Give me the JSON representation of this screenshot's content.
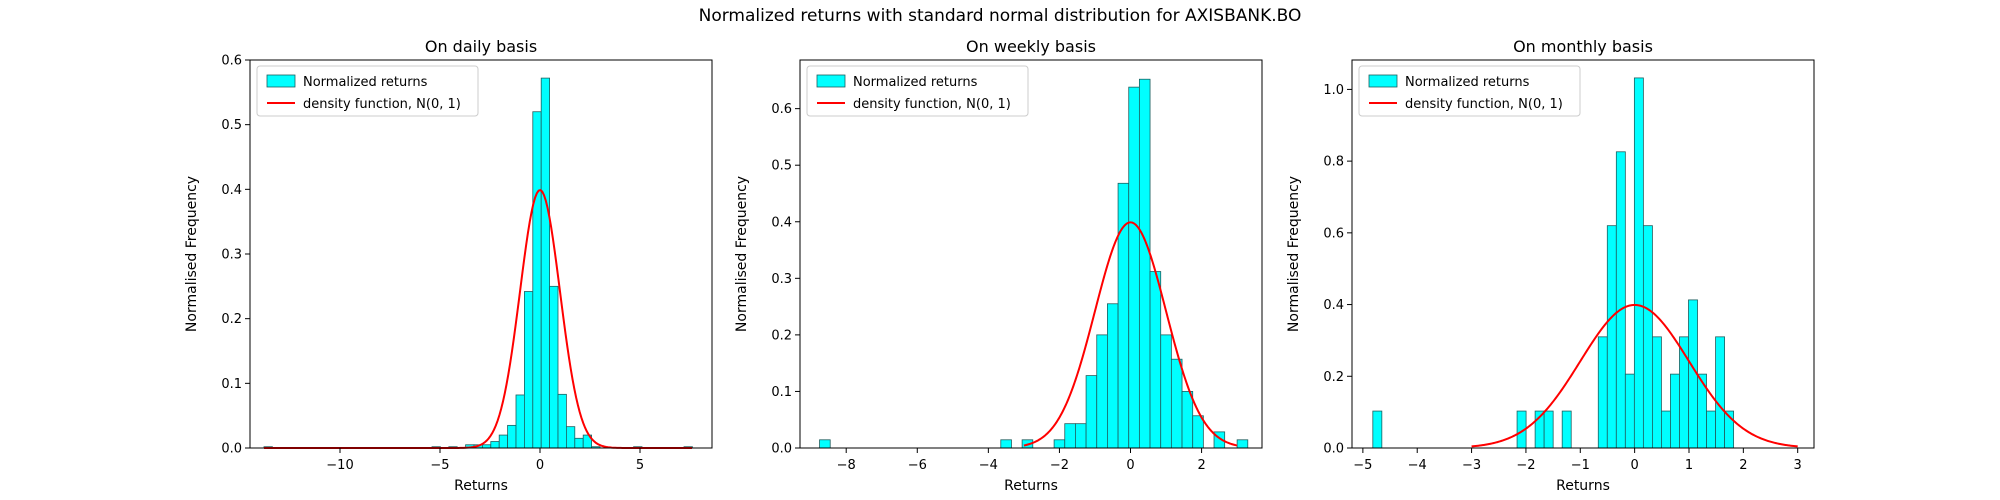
{
  "suptitle": "Normalized returns with standard normal distribution for AXISBANK.BO",
  "colors": {
    "bar_fill": "#00ffff",
    "bar_edge": "#1f5f5f",
    "curve": "#ff0000",
    "axes": "#000000"
  },
  "chart_data": [
    {
      "type": "bar",
      "title": "On daily basis",
      "xlabel": "Returns",
      "ylabel": "Normalised Frequency",
      "xlim": [
        -14.5,
        8.6
      ],
      "ylim": [
        0,
        0.6
      ],
      "xticks": [
        -10,
        -5,
        0,
        5
      ],
      "yticks": [
        0.0,
        0.1,
        0.2,
        0.3,
        0.4,
        0.5,
        0.6
      ],
      "ytick_format": 1,
      "legend": {
        "position": "top-left",
        "entries": [
          "Normalized returns",
          "density function, N(0, 1)"
        ]
      },
      "bin_start": -13.8,
      "bin_width": 0.42,
      "bins": [
        [
          -13.8,
          0.002
        ],
        [
          -5.4,
          0.002
        ],
        [
          -4.56,
          0.002
        ],
        [
          -3.72,
          0.005
        ],
        [
          -3.3,
          0.005
        ],
        [
          -2.88,
          0.005
        ],
        [
          -2.46,
          0.01
        ],
        [
          -2.04,
          0.02
        ],
        [
          -1.62,
          0.035
        ],
        [
          -1.2,
          0.082
        ],
        [
          -0.78,
          0.242
        ],
        [
          -0.36,
          0.52
        ],
        [
          0.06,
          0.572
        ],
        [
          0.48,
          0.25
        ],
        [
          0.9,
          0.083
        ],
        [
          1.32,
          0.033
        ],
        [
          1.74,
          0.015
        ],
        [
          2.16,
          0.02
        ],
        [
          2.58,
          0.002
        ],
        [
          4.68,
          0.002
        ],
        [
          7.2,
          0.002
        ]
      ],
      "curve": {
        "label": "density function, N(0, 1)",
        "x_range": [
          -13.8,
          7.6
        ],
        "mean": 0,
        "std": 1
      }
    },
    {
      "type": "bar",
      "title": "On weekly basis",
      "xlabel": "Returns",
      "ylabel": "Normalised Frequency",
      "xlim": [
        -9.3,
        3.7
      ],
      "ylim": [
        0,
        0.686
      ],
      "xticks": [
        -8,
        -6,
        -4,
        -2,
        0,
        2
      ],
      "yticks": [
        0.0,
        0.1,
        0.2,
        0.3,
        0.4,
        0.5,
        0.6
      ],
      "ytick_format": 1,
      "legend": {
        "position": "top-left",
        "entries": [
          "Normalized returns",
          "density function, N(0, 1)"
        ]
      },
      "bin_width": 0.3,
      "bins": [
        [
          -8.75,
          0.0145
        ],
        [
          -3.65,
          0.0145
        ],
        [
          -3.05,
          0.0145
        ],
        [
          -2.15,
          0.0145
        ],
        [
          -1.85,
          0.043
        ],
        [
          -1.55,
          0.043
        ],
        [
          -1.25,
          0.128
        ],
        [
          -0.95,
          0.2
        ],
        [
          -0.65,
          0.255
        ],
        [
          -0.35,
          0.468
        ],
        [
          -0.05,
          0.638
        ],
        [
          0.25,
          0.652
        ],
        [
          0.55,
          0.312
        ],
        [
          0.85,
          0.2
        ],
        [
          1.15,
          0.157
        ],
        [
          1.45,
          0.1
        ],
        [
          1.75,
          0.057
        ],
        [
          2.35,
          0.0285
        ],
        [
          3.0,
          0.0145
        ]
      ],
      "curve": {
        "label": "density function, N(0, 1)",
        "x_range": [
          -3,
          3
        ],
        "mean": 0,
        "std": 1
      }
    },
    {
      "type": "bar",
      "title": "On monthly basis",
      "xlabel": "Returns",
      "ylabel": "Normalised Frequency",
      "xlim": [
        -5.2,
        3.3
      ],
      "ylim": [
        0,
        1.082
      ],
      "xticks": [
        -5,
        -4,
        -3,
        -2,
        -1,
        0,
        1,
        2,
        3
      ],
      "yticks": [
        0.0,
        0.2,
        0.4,
        0.6,
        0.8,
        1.0
      ],
      "ytick_format": 1,
      "legend": {
        "position": "top-left",
        "entries": [
          "Normalized returns",
          "density function, N(0, 1)"
        ]
      },
      "bin_width": 0.166,
      "bins": [
        [
          -4.817,
          0.103
        ],
        [
          -2.163,
          0.103
        ],
        [
          -1.831,
          0.103
        ],
        [
          -1.665,
          0.103
        ],
        [
          -1.333,
          0.103
        ],
        [
          -0.669,
          0.31
        ],
        [
          -0.503,
          0.62
        ],
        [
          -0.337,
          0.826
        ],
        [
          -0.171,
          0.206
        ],
        [
          -0.005,
          1.032
        ],
        [
          0.161,
          0.62
        ],
        [
          0.327,
          0.31
        ],
        [
          0.493,
          0.103
        ],
        [
          0.659,
          0.206
        ],
        [
          0.825,
          0.31
        ],
        [
          0.991,
          0.413
        ],
        [
          1.157,
          0.206
        ],
        [
          1.323,
          0.103
        ],
        [
          1.489,
          0.31
        ],
        [
          1.655,
          0.103
        ]
      ],
      "curve": {
        "label": "density function, N(0, 1)",
        "x_range": [
          -3,
          3
        ],
        "mean": 0,
        "std": 1
      }
    }
  ]
}
